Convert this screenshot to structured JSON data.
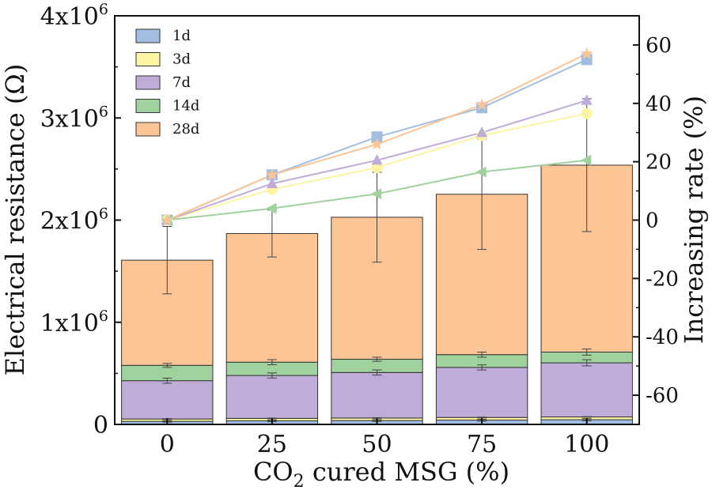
{
  "chart_data": {
    "type": "bar",
    "subtype": "stacked-bar-with-lines-dual-axis",
    "categories": [
      "0",
      "25",
      "50",
      "75",
      "100"
    ],
    "xlabel_main": "CO",
    "xlabel_sub": "2",
    "xlabel_rest": " cured MSG (%)",
    "ylabel_left": "Electrical resistance (Ω)",
    "ylabel_right": "Increasing rate (%)",
    "left_axis": {
      "ylim": [
        0,
        4000000
      ],
      "ticks": [
        {
          "value": 0,
          "base": "0",
          "exp": ""
        },
        {
          "value": 1000000,
          "base": "1x10",
          "exp": "6"
        },
        {
          "value": 2000000,
          "base": "2x10",
          "exp": "6"
        },
        {
          "value": 3000000,
          "base": "3x10",
          "exp": "6"
        },
        {
          "value": 4000000,
          "base": "4x10",
          "exp": "6"
        }
      ]
    },
    "right_axis": {
      "ylim": [
        -70,
        70
      ],
      "ticks": [
        {
          "value": 60,
          "label": "60"
        },
        {
          "value": 40,
          "label": "40"
        },
        {
          "value": 20,
          "label": "20"
        },
        {
          "value": 0,
          "label": "0"
        },
        {
          "value": -20,
          "label": "-20"
        },
        {
          "value": -40,
          "label": "-40"
        },
        {
          "value": -60,
          "label": "-60"
        }
      ]
    },
    "series": [
      {
        "name": "1d",
        "color": "#a2bde2",
        "marker": "square",
        "resistance": [
          30000,
          35000,
          38000,
          42000,
          46000
        ],
        "resistance_err": [
          8000,
          9000,
          9000,
          10000,
          10000
        ],
        "rate": [
          0,
          15.5,
          28.5,
          38.5,
          55.0
        ]
      },
      {
        "name": "3d",
        "color": "#fdf5a3",
        "marker": "circle",
        "resistance": [
          23000,
          24000,
          25000,
          26000,
          27000
        ],
        "resistance_err": [
          3000,
          3000,
          3000,
          3000,
          3000
        ],
        "rate": [
          0,
          10.5,
          18.0,
          29.0,
          36.5
        ]
      },
      {
        "name": "7d",
        "color": "#c0acd9",
        "marker": "triangle-up",
        "resistance": [
          375000,
          420000,
          445000,
          490000,
          530000
        ],
        "resistance_err": [
          25000,
          25000,
          25000,
          25000,
          30000
        ],
        "rate": [
          0,
          12.5,
          20.5,
          30.0,
          41.0
        ]
      },
      {
        "name": "14d",
        "color": "#9fd29c",
        "marker": "triangle-left",
        "resistance": [
          150000,
          130000,
          130000,
          125000,
          105000
        ],
        "resistance_err": [
          20000,
          25000,
          20000,
          25000,
          30000
        ],
        "rate": [
          0,
          4.0,
          9.0,
          16.5,
          20.5
        ]
      },
      {
        "name": "28d",
        "color": "#fdc596",
        "marker": "star",
        "resistance": [
          1030000,
          1260000,
          1390000,
          1570000,
          1830000
        ],
        "resistance_err": [
          330000,
          230000,
          440000,
          540000,
          650000
        ],
        "rate": [
          0,
          15.5,
          26.0,
          39.5,
          57.0
        ]
      }
    ],
    "legend_position": "top-left"
  }
}
